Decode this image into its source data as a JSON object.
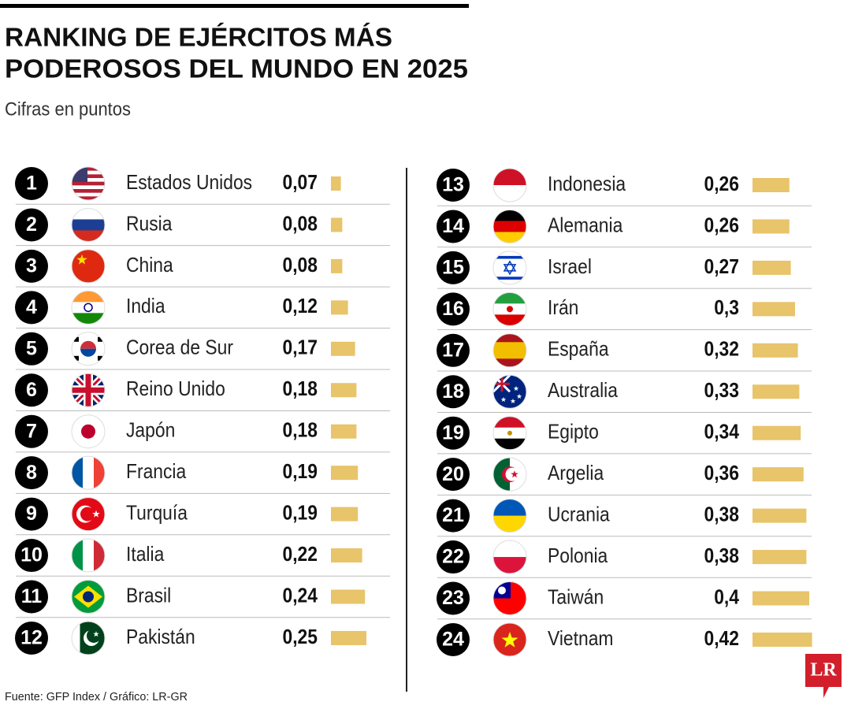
{
  "chart_data": {
    "type": "bar",
    "title": [
      "RANKING DE EJÉRCITOS MÁS",
      "PODEROSOS DEL MUNDO EN 2025"
    ],
    "subtitle": "Cifras en puntos",
    "ranks": [
      1,
      2,
      3,
      4,
      5,
      6,
      7,
      8,
      9,
      10,
      11,
      12,
      13,
      14,
      15,
      16,
      17,
      18,
      19,
      20,
      21,
      22,
      23,
      24
    ],
    "categories": [
      "Estados Unidos",
      "Rusia",
      "China",
      "India",
      "Corea de Sur",
      "Reino Unido",
      "Japón",
      "Francia",
      "Turquía",
      "Italia",
      "Brasil",
      "Pakistán",
      "Indonesia",
      "Alemania",
      "Israel",
      "Irán",
      "España",
      "Australia",
      "Egipto",
      "Argelia",
      "Ucrania",
      "Polonia",
      "Taiwán",
      "Vietnam"
    ],
    "values": [
      0.07,
      0.08,
      0.08,
      0.12,
      0.17,
      0.18,
      0.18,
      0.19,
      0.19,
      0.22,
      0.24,
      0.25,
      0.26,
      0.26,
      0.27,
      0.3,
      0.32,
      0.33,
      0.34,
      0.36,
      0.38,
      0.38,
      0.4,
      0.42
    ],
    "value_labels": [
      "0,07",
      "0,08",
      "0,08",
      "0,12",
      "0,17",
      "0,18",
      "0,18",
      "0,19",
      "0,19",
      "0,22",
      "0,24",
      "0,25",
      "0,26",
      "0,26",
      "0,27",
      "0,3",
      "0,32",
      "0,33",
      "0,34",
      "0,36",
      "0,38",
      "0,38",
      "0,4",
      "0,42"
    ],
    "color": "#e8c46a",
    "source": "Fuente: GFP Index / Gráfico: LR-GR",
    "logo": "LR"
  }
}
